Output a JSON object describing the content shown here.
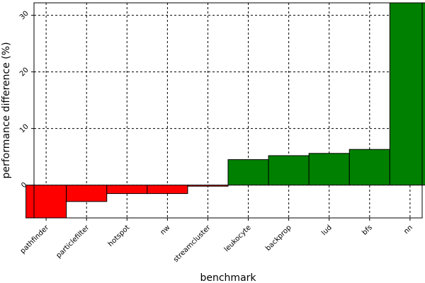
{
  "chart_data": {
    "type": "bar",
    "categories": [
      "pathfinder",
      "particlefilter",
      "hotspot",
      "nw",
      "streamcluster",
      "leukocyte",
      "backprop",
      "lud",
      "bfs",
      "nn"
    ],
    "values": [
      -5.8,
      -2.9,
      -1.5,
      -1.5,
      -0.2,
      4.5,
      5.2,
      5.6,
      6.3,
      32.2
    ],
    "xlabel": "benchmark",
    "ylabel": "performance difference (%)",
    "ylim": [
      -5.8,
      32.2
    ],
    "yticks": [
      0,
      10,
      20,
      30
    ],
    "grid": true,
    "colors": {
      "positive": "#008000",
      "negative": "#ff0000",
      "edge": "#000000"
    }
  }
}
